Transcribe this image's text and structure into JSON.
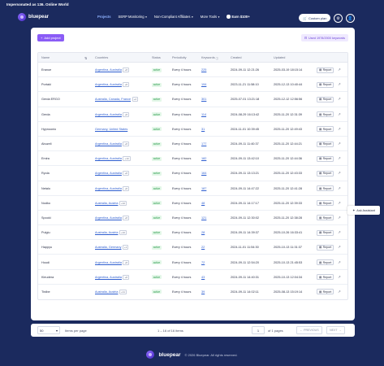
{
  "impersonation": "Impersonated as 136. Online World",
  "brand": {
    "name": "bluepear"
  },
  "nav": {
    "items": [
      {
        "label": "Projects",
        "active": true,
        "dropdown": false
      },
      {
        "label": "SERP Monitoring",
        "active": false,
        "dropdown": true
      },
      {
        "label": "Non-Compliant Affiliates",
        "active": false,
        "dropdown": true
      },
      {
        "label": "More Tools",
        "active": false,
        "dropdown": true
      }
    ],
    "earn_label": "Earn $100+",
    "custom_plan_label": "Custom plan"
  },
  "toolbar": {
    "add_project_label": "Add project",
    "used_keywords_label": "Used 1978/2000 keywords"
  },
  "table": {
    "columns": [
      "Name",
      "Countries",
      "Status",
      "Periodicity",
      "Keywords",
      "Created",
      "Updated"
    ],
    "report_label": "Report",
    "rows": [
      {
        "name": "Eranoe",
        "countries": "Argentina, Australia",
        "more": "+8",
        "status": "active",
        "periodicity": "Every 4 hours",
        "keywords": "225",
        "created": "2024-09-11 12:21:26",
        "updated": "2025-03-19 18:15:14"
      },
      {
        "name": "Portaki",
        "countries": "Argentina, Australia",
        "more": "+8",
        "status": "active",
        "periodicity": "Every 4 hours",
        "keywords": "194",
        "created": "2023-11-21 11:58:10",
        "updated": "2025-12-13 10:40:44"
      },
      {
        "name": "Gerda ERGO",
        "countries": "Australia, Canada, France",
        "more": "+2",
        "status": "active",
        "periodicity": "Every 4 hours",
        "keywords": "301",
        "created": "2025-07-01 13:21:18",
        "updated": "2025-12-12 12:56:56"
      },
      {
        "name": "Gerda",
        "countries": "Argentina, Australia",
        "more": "+8",
        "status": "active",
        "periodicity": "Every 4 hours",
        "keywords": "114",
        "created": "2024-08-29 16:13:42",
        "updated": "2025-11-20 12:31:39"
      },
      {
        "name": "Hypnoonio",
        "countries": "Germany, United States",
        "more": "",
        "status": "active",
        "periodicity": "Every 4 hours",
        "keywords": "31",
        "created": "2024-11-01 10:39:45",
        "updated": "2025-11-20 12:49:43"
      },
      {
        "name": "Abuzeli",
        "countries": "Argentina, Australia",
        "more": "+8",
        "status": "active",
        "periodicity": "Every 4 hours",
        "keywords": "177",
        "created": "2024-09-11 11:40:37",
        "updated": "2025-11-20 12:44:21"
      },
      {
        "name": "Emira",
        "countries": "Argentina, Australia",
        "more": "+10",
        "status": "active",
        "periodicity": "Every 4 hours",
        "keywords": "182",
        "created": "2024-09-11 13:42:10",
        "updated": "2025-11-20 12:44:36"
      },
      {
        "name": "Ryola",
        "countries": "Argentina, Australia",
        "more": "+8",
        "status": "active",
        "periodicity": "Every 4 hours",
        "keywords": "164",
        "created": "2024-09-11 13:13:21",
        "updated": "2025-11-20 12:43:33"
      },
      {
        "name": "Netalo",
        "countries": "Argentina, Australia",
        "more": "+8",
        "status": "active",
        "periodicity": "Every 4 hours",
        "keywords": "187",
        "created": "2024-09-11 14:47:22",
        "updated": "2025-11-20 12:41:28"
      },
      {
        "name": "Nodko",
        "countries": "Australia, Austria",
        "more": "+10",
        "status": "active",
        "periodicity": "Every 4 hours",
        "keywords": "48",
        "created": "2024-09-11 14:17:17",
        "updated": "2025-11-20 12:39:33"
      },
      {
        "name": "Spooki",
        "countries": "Argentina, Australia",
        "more": "+8",
        "status": "active",
        "periodicity": "Every 4 hours",
        "keywords": "121",
        "created": "2024-09-11 12:30:02",
        "updated": "2025-11-20 12:38:28"
      },
      {
        "name": "Pulgiu",
        "countries": "Australia, Austria",
        "more": "+10",
        "status": "active",
        "periodicity": "Every 4 hours",
        "keywords": "28",
        "created": "2024-09-11 14:39:37",
        "updated": "2025-10-26 16:33:41"
      },
      {
        "name": "Happyu",
        "countries": "Australia, Germany",
        "more": "+1",
        "status": "active",
        "periodicity": "Every 4 hours",
        "keywords": "22",
        "created": "2024-11-01 11:54:30",
        "updated": "2025-10-13 11:31:37"
      },
      {
        "name": "Houdi",
        "countries": "Argentina, Australia",
        "more": "+8",
        "status": "active",
        "periodicity": "Every 4 hours",
        "keywords": "72",
        "created": "2024-09-11 12:54:20",
        "updated": "2025-10-13 21:45:53"
      },
      {
        "name": "Kleudera",
        "countries": "Argentina, Australia",
        "more": "+8",
        "status": "active",
        "periodicity": "Every 4 hours",
        "keywords": "43",
        "created": "2024-09-11 14:40:31",
        "updated": "2025-10-13 12:04:34"
      },
      {
        "name": "Tirdbe",
        "countries": "Australia, Austria",
        "more": "+11",
        "status": "active",
        "periodicity": "Every 4 hours",
        "keywords": "39",
        "created": "2024-09-11 14:02:11",
        "updated": "2025-08-13 15:19:14"
      }
    ]
  },
  "pagination": {
    "per_page": "50",
    "per_page_label": "Items per page",
    "range_label": "1 – 16 of 16 items",
    "current_page": "1",
    "of_pages": "of 1 pages",
    "previous_label": "PREVIOUS",
    "next_label": "NEXT"
  },
  "assistant": {
    "label": "Ask Assistant"
  },
  "footer": {
    "brand": "bluepear",
    "copyright": "© 2026 Bluepear. All rights reserved."
  }
}
